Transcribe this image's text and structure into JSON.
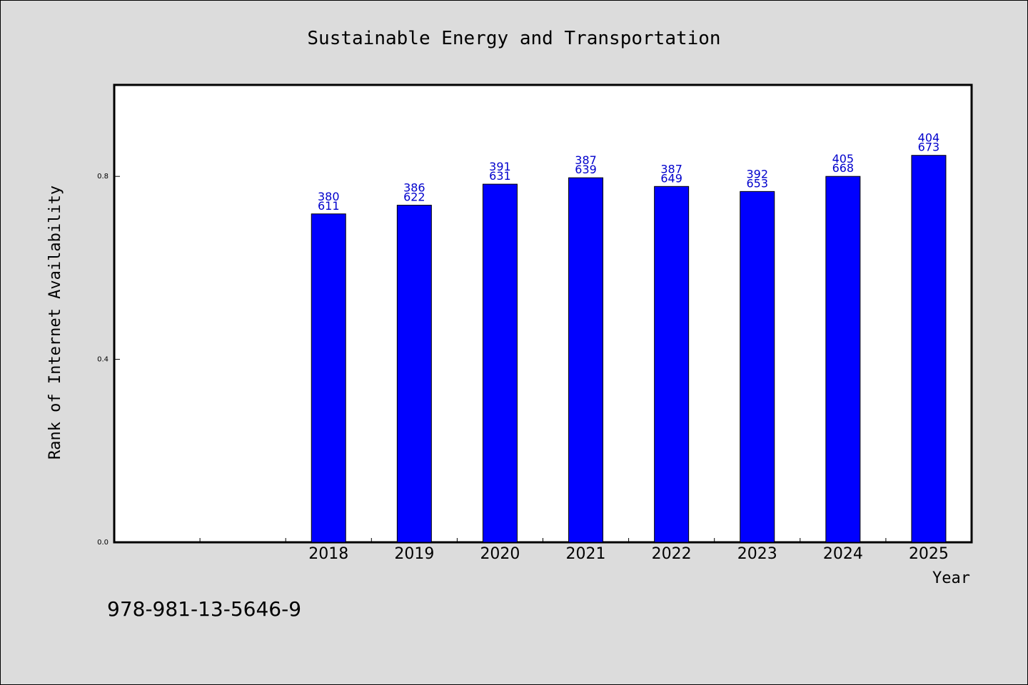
{
  "footer_text": "978-981-13-5646-9",
  "chart_data": {
    "type": "bar",
    "title": "Sustainable Energy and Transportation",
    "xlabel": "Year",
    "ylabel": "Rank of Internet Availability",
    "categories": [
      "",
      "",
      "2018",
      "2019",
      "2020",
      "2021",
      "2022",
      "2023",
      "2024",
      "2025"
    ],
    "values": [
      null,
      null,
      0.718,
      0.737,
      0.783,
      0.797,
      0.778,
      0.767,
      0.8,
      0.846
    ],
    "bar_labels": [
      [
        "",
        ""
      ],
      [
        "",
        ""
      ],
      [
        "380",
        "611"
      ],
      [
        "386",
        "622"
      ],
      [
        "391",
        "631"
      ],
      [
        "387",
        "639"
      ],
      [
        "387",
        "649"
      ],
      [
        "392",
        "653"
      ],
      [
        "405",
        "668"
      ],
      [
        "404",
        "673"
      ]
    ],
    "yticks": [
      0.0,
      0.4,
      0.8
    ],
    "ytick_labels": [
      "0.0",
      "0.4",
      "0.8"
    ],
    "ylim": [
      0,
      1.0
    ],
    "grid": false,
    "colors": {
      "bar": "#0000ff",
      "bar_edge": "#000000",
      "label": "#0000cc",
      "background": "#dcdcdc",
      "plot_bg": "#ffffff"
    }
  }
}
